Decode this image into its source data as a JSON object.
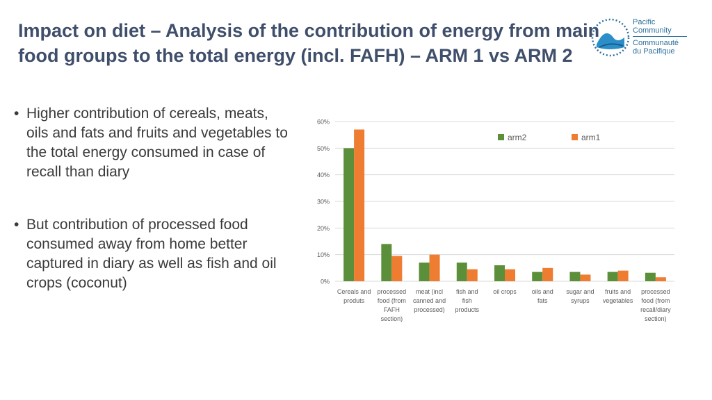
{
  "slide": {
    "title_line1": "Impact on diet – Analysis of the contribution of energy from main",
    "title_line2": "food groups to the total energy (incl. FAFH) – ARM 1 vs ARM 2"
  },
  "logo": {
    "line1": "Pacific",
    "line2": "Community",
    "line3": "Communauté",
    "line4": "du Pacifique"
  },
  "bullets": [
    {
      "dot": "•",
      "text": "Higher contribution of cereals, meats, oils and fats and fruits and vegetables to the total energy consumed in case of recall than diary"
    },
    {
      "dot": "•",
      "text": "But contribution of processed food consumed away from home better captured in diary as well as fish and oil crops (coconut)"
    }
  ],
  "colors": {
    "arm2": "#5b8f3a",
    "arm1": "#ee7d31",
    "grid": "#d9d9d9",
    "axis_text": "#595959",
    "title": "#3f4f6b"
  },
  "chart_data": {
    "type": "bar",
    "categories": [
      [
        "Cereals and",
        "produts"
      ],
      [
        "processed",
        "food (from",
        "FAFH",
        "section)"
      ],
      [
        "meat (incl",
        "canned and",
        "processed)"
      ],
      [
        "fish and",
        "fish",
        "products"
      ],
      [
        "oil crops"
      ],
      [
        "oils and",
        "fats"
      ],
      [
        "sugar and",
        "syrups"
      ],
      [
        "fruits and",
        "vegetables"
      ],
      [
        "processed",
        "food (from",
        "recall/diary",
        "section)"
      ]
    ],
    "series": [
      {
        "name": "arm2",
        "values": [
          50,
          14,
          7,
          7,
          6,
          3.5,
          3.5,
          3.5,
          3.2
        ]
      },
      {
        "name": "arm1",
        "values": [
          57,
          9.5,
          10,
          4.5,
          4.5,
          5,
          2.5,
          4,
          1.5
        ]
      }
    ],
    "y_ticks": [
      "0%",
      "10%",
      "20%",
      "30%",
      "40%",
      "50%",
      "60%"
    ],
    "ylim": [
      0,
      60
    ],
    "legend_position": "top-right",
    "grid": true
  }
}
